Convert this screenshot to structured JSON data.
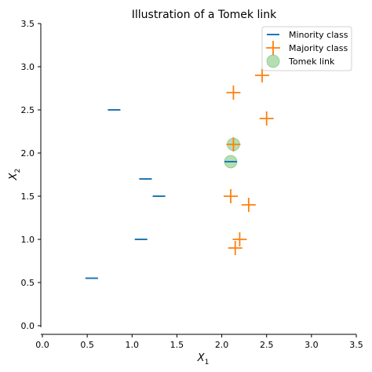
{
  "chart_data": {
    "type": "scatter",
    "title": "Illustration of a Tomek link",
    "xlabel_main": "X",
    "xlabel_sub": "1",
    "ylabel_main": "X",
    "ylabel_sub": "2",
    "xlim": [
      0.0,
      3.5
    ],
    "ylim": [
      0.0,
      3.5
    ],
    "xticks": [
      "0.0",
      "0.5",
      "1.0",
      "1.5",
      "2.0",
      "2.5",
      "3.0",
      "3.5"
    ],
    "yticks": [
      "0.0",
      "0.5",
      "1.0",
      "1.5",
      "2.0",
      "2.5",
      "3.0",
      "3.5"
    ],
    "grid": false,
    "legend_position": "top-right",
    "series": [
      {
        "name": "Minority class",
        "marker": "hline",
        "color": "#1f77b4",
        "points": [
          [
            0.55,
            0.55
          ],
          [
            0.8,
            2.5
          ],
          [
            1.1,
            1.0
          ],
          [
            1.15,
            1.7
          ],
          [
            1.3,
            1.5
          ],
          [
            2.1,
            1.9
          ]
        ]
      },
      {
        "name": "Majority class",
        "marker": "plus",
        "color": "#ff7f0e",
        "points": [
          [
            2.13,
            2.1
          ],
          [
            2.13,
            2.7
          ],
          [
            2.45,
            2.9
          ],
          [
            2.5,
            2.4
          ],
          [
            2.1,
            1.5
          ],
          [
            2.3,
            1.4
          ],
          [
            2.2,
            1.0
          ],
          [
            2.15,
            0.9
          ]
        ]
      },
      {
        "name": "Tomek link",
        "marker": "circle",
        "color": "#2ca02c",
        "points": [
          [
            2.1,
            1.9
          ],
          [
            2.13,
            2.1
          ]
        ]
      }
    ]
  }
}
